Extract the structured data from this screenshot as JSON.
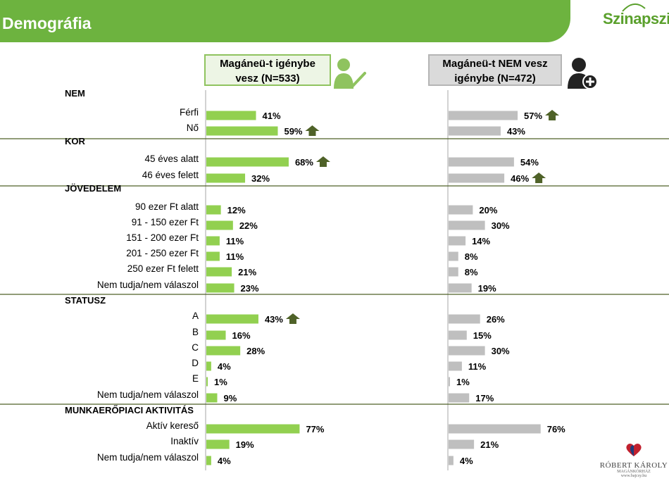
{
  "page": {
    "title": "Demográfia",
    "logo_text": "Szinapszis"
  },
  "columns": [
    {
      "line1": "Magáneü-t igénybe",
      "line2": "vesz (N=533)"
    },
    {
      "line1": "Magáneü-t NEM vesz",
      "line2": "igénybe (N=472)"
    }
  ],
  "footer_logo": {
    "name": "RÓBERT KÁROLY",
    "sub": "MAGÁNKÓRHÁZ",
    "tagline": "www.bajcsy.hu"
  },
  "colors": {
    "green_bar": "#92d050",
    "grey_bar": "#bfbfbf",
    "arrow": "#4f6228",
    "header": "#6db33f",
    "divider": "#4f6228"
  },
  "chart_data": {
    "type": "bar",
    "orientation": "horizontal",
    "unit": "%",
    "series": [
      {
        "name": "Magáneü-t igénybe vesz (N=533)"
      },
      {
        "name": "Magáneü-t NEM vesz igénybe (N=472)"
      }
    ],
    "groups": [
      {
        "title": "NEM",
        "rows": [
          {
            "label": "Férfi",
            "values": [
              41,
              57
            ],
            "up": [
              false,
              true
            ]
          },
          {
            "label": "Nő",
            "values": [
              59,
              43
            ],
            "up": [
              true,
              false
            ]
          }
        ]
      },
      {
        "title": "KOR",
        "rows": [
          {
            "label": "45 éves alatt",
            "values": [
              68,
              54
            ],
            "up": [
              true,
              false
            ]
          },
          {
            "label": "46 éves felett",
            "values": [
              32,
              46
            ],
            "up": [
              false,
              true
            ]
          }
        ]
      },
      {
        "title": "JÖVEDELEM",
        "rows": [
          {
            "label": "90 ezer Ft alatt",
            "values": [
              12,
              20
            ],
            "up": [
              false,
              false
            ]
          },
          {
            "label": "91 - 150 ezer Ft",
            "values": [
              22,
              30
            ],
            "up": [
              false,
              false
            ]
          },
          {
            "label": "151 - 200 ezer Ft",
            "values": [
              11,
              14
            ],
            "up": [
              false,
              false
            ]
          },
          {
            "label": "201 - 250 ezer Ft",
            "values": [
              11,
              8
            ],
            "up": [
              false,
              false
            ]
          },
          {
            "label": "250 ezer Ft felett",
            "values": [
              21,
              8
            ],
            "up": [
              false,
              false
            ]
          },
          {
            "label": "Nem tudja/nem válaszol",
            "values": [
              23,
              19
            ],
            "up": [
              false,
              false
            ]
          }
        ]
      },
      {
        "title": "STATUSZ",
        "rows": [
          {
            "label": "A",
            "values": [
              43,
              26
            ],
            "up": [
              true,
              false
            ]
          },
          {
            "label": "B",
            "values": [
              16,
              15
            ],
            "up": [
              false,
              false
            ]
          },
          {
            "label": "C",
            "values": [
              28,
              30
            ],
            "up": [
              false,
              false
            ]
          },
          {
            "label": "D",
            "values": [
              4,
              11
            ],
            "up": [
              false,
              false
            ]
          },
          {
            "label": "E",
            "values": [
              1,
              1
            ],
            "up": [
              false,
              false
            ]
          },
          {
            "label": "Nem tudja/nem válaszol",
            "values": [
              9,
              17
            ],
            "up": [
              false,
              false
            ]
          }
        ]
      },
      {
        "title": "MUNKAERŐPIACI AKTIVITÁS",
        "rows": [
          {
            "label": "Aktív kereső",
            "values": [
              77,
              76
            ],
            "up": [
              false,
              false
            ]
          },
          {
            "label": "Inaktív",
            "values": [
              19,
              21
            ],
            "up": [
              false,
              false
            ]
          },
          {
            "label": "Nem tudja/nem válaszol",
            "values": [
              4,
              4
            ],
            "up": [
              false,
              false
            ]
          }
        ]
      }
    ]
  }
}
